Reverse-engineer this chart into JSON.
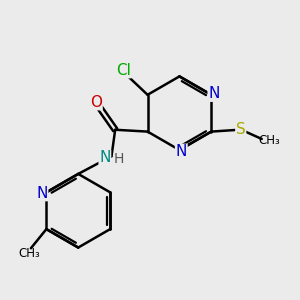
{
  "background_color": "#ebebeb",
  "atom_colors": {
    "C": "#000000",
    "N": "#0000cc",
    "N_NH": "#008888",
    "O": "#cc0000",
    "S": "#aaaa00",
    "Cl": "#00aa00",
    "H": "#000000"
  },
  "bond_lw": 1.8,
  "font_size": 11,
  "figsize": [
    3.0,
    3.0
  ],
  "dpi": 100
}
